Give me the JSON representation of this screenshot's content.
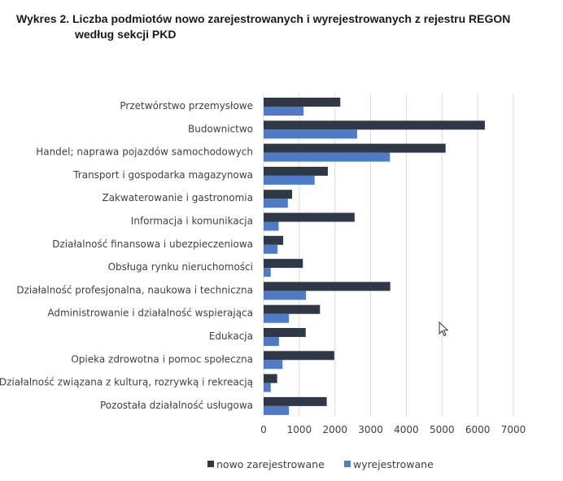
{
  "title": {
    "line1": "Wykres 2. Liczba podmiotów nowo zarejestrowanych i wyrejestrowanych z rejestru REGON",
    "line2": "według sekcji PKD"
  },
  "chart_data": {
    "type": "bar",
    "orientation": "horizontal",
    "title": "Wykres 2. Liczba podmiotów nowo zarejestrowanych i wyrejestrowanych z rejestru REGON według sekcji PKD",
    "categories": [
      "Przetwórstwo przemysłowe",
      "Budownictwo",
      "Handel; naprawa pojazdów samochodowych",
      "Transport i gospodarka magazynowa",
      "Zakwaterowanie i gastronomia",
      "Informacja i komunikacja",
      "Działalność finansowa i ubezpieczeniowa",
      "Obsługa rynku nieruchomości",
      "Działalność profesjonalna, naukowa i techniczna",
      "Administrowanie i działalność wspierająca",
      "Edukacja",
      "Opieka zdrowotna i pomoc społeczna",
      "Działalność związana z kulturą, rozrywką i rekreacją",
      "Pozostała działalność usługowa"
    ],
    "series": [
      {
        "name": "nowo zarejestrowane",
        "color": "#2f3846",
        "values": [
          2150,
          6200,
          5100,
          1800,
          800,
          2550,
          550,
          1100,
          3550,
          1580,
          1180,
          1980,
          380,
          1770
        ]
      },
      {
        "name": "wyrejestrowane",
        "color": "#4f7ac6",
        "values": [
          1120,
          2620,
          3540,
          1430,
          680,
          420,
          390,
          200,
          1190,
          710,
          430,
          530,
          200,
          710
        ]
      }
    ],
    "xlim": [
      0,
      7000
    ],
    "xticks": [
      "0",
      "1000",
      "2000",
      "3000",
      "4000",
      "5000",
      "6000",
      "7000"
    ],
    "grid": true,
    "legend_position": "bottom"
  }
}
